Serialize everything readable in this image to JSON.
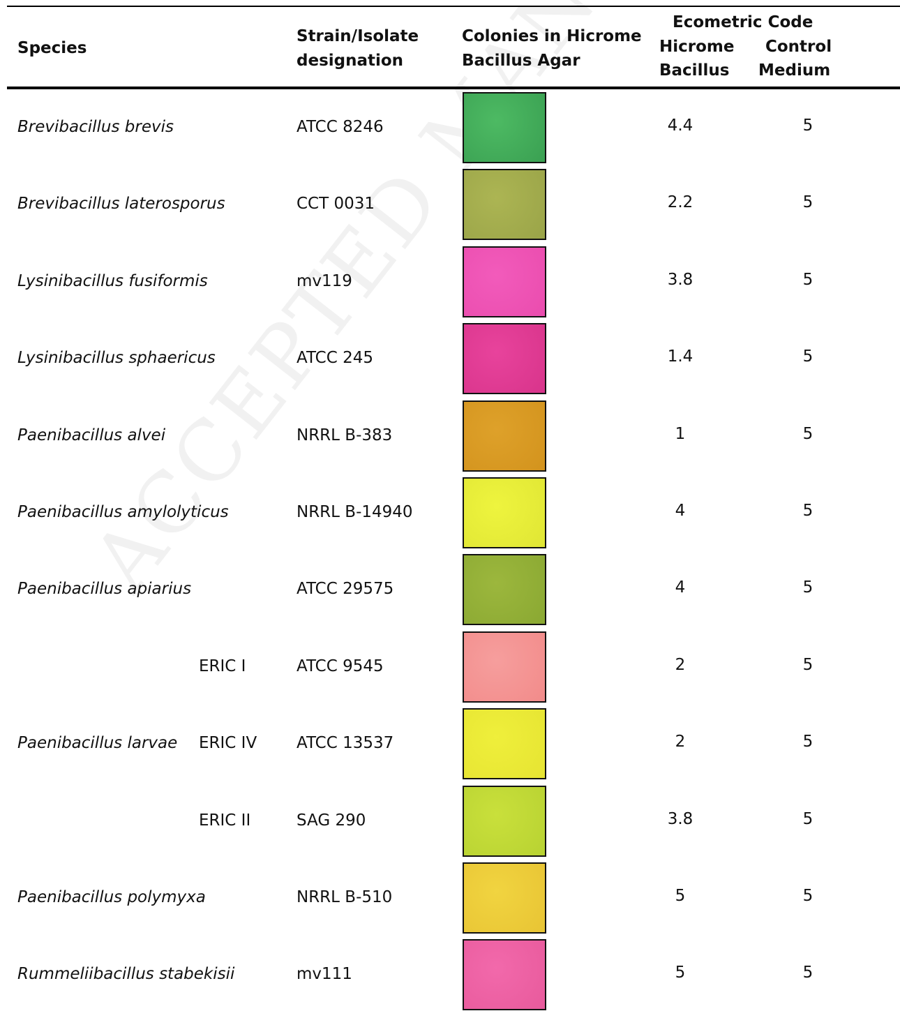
{
  "table": {
    "header": {
      "species": "Species",
      "strain": [
        "Strain/Isolate",
        "designation"
      ],
      "colonies": [
        "Colonies in Hicrome",
        "Bacillus Agar"
      ],
      "ecometric": "Ecometric  Code",
      "hicrome": [
        "Hicrome",
        "Bacillus"
      ],
      "control": [
        "Control",
        "Medium"
      ]
    },
    "rows": [
      {
        "species": "Brevibacillus brevis",
        "strain": "ATCC  8246",
        "hicrome": 4.4,
        "control": 5
      },
      {
        "species": "Brevibacillus laterosporus",
        "strain": "CCT 0031",
        "hicrome": 2.2,
        "control": 5
      },
      {
        "species": "Lysinibacillus fusiformis",
        "strain": "mv119",
        "hicrome": 3.8,
        "control": 5
      },
      {
        "species": "Lysinibacillus sphaericus",
        "strain": "ATCC 245",
        "hicrome": 1.4,
        "control": 5
      },
      {
        "species": "Paenibacillus alvei",
        "strain": "NRRL B-383",
        "hicrome": 1,
        "control": 5
      },
      {
        "species": "Paenibacillus amylolyticus",
        "strain": "NRRL B-14940",
        "hicrome": 4,
        "control": 5
      },
      {
        "species": "Paenibacillus apiarius",
        "strain": "ATCC  29575",
        "hicrome": 4,
        "control": 5
      },
      {
        "group": "ERIC I",
        "strain": "ATCC  9545",
        "hicrome": 2,
        "control": 5
      },
      {
        "species": "Paenibacillus larvae",
        "group": "ERIC IV",
        "strain": "ATCC  13537",
        "hicrome": 2,
        "control": 5
      },
      {
        "group": "ERIC II",
        "strain": "SAG 290",
        "hicrome": 3.8,
        "control": 5
      },
      {
        "species": "Paenibacillus polymyxa",
        "strain": "NRRL B-510",
        "hicrome": 5,
        "control": 5
      },
      {
        "species": "Rummeliibacillus stabekisii",
        "strain": "mv111",
        "hicrome": 5,
        "control": 5
      }
    ]
  },
  "watermark": "ACCEPTED MANUSCRIPT"
}
